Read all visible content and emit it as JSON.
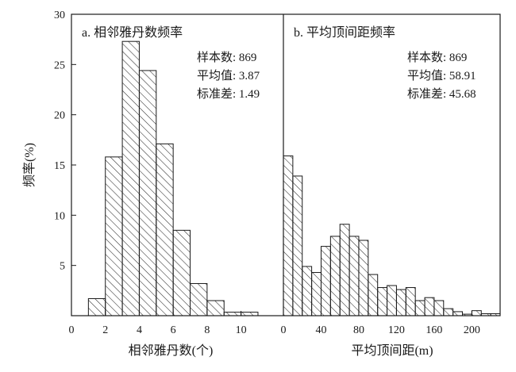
{
  "chart_data": [
    {
      "type": "bar",
      "title": "a. 相邻雅丹数频率",
      "xlabel": "相邻雅丹数(个)",
      "ylabel": "频率(%)",
      "xlim": [
        0,
        12.5
      ],
      "ylim": [
        0,
        30
      ],
      "x_ticks": [
        "0",
        "2",
        "4",
        "6",
        "8",
        "10"
      ],
      "y_ticks": [
        "5",
        "10",
        "15",
        "20",
        "25",
        "30"
      ],
      "bin_width": 1,
      "bins": [
        {
          "x": 1,
          "value": 1.7
        },
        {
          "x": 2,
          "value": 15.8
        },
        {
          "x": 3,
          "value": 27.3
        },
        {
          "x": 4,
          "value": 24.4
        },
        {
          "x": 5,
          "value": 17.1
        },
        {
          "x": 6,
          "value": 8.5
        },
        {
          "x": 7,
          "value": 3.2
        },
        {
          "x": 8,
          "value": 1.5
        },
        {
          "x": 9,
          "value": 0.35
        },
        {
          "x": 10,
          "value": 0.35
        }
      ],
      "stats": [
        {
          "label": "样本数",
          "value": "869"
        },
        {
          "label": "平均值",
          "value": "3.87"
        },
        {
          "label": "标准差",
          "value": "1.49"
        }
      ]
    },
    {
      "type": "bar",
      "title": "b. 平均顶间距频率",
      "xlabel": "平均顶间距(m)",
      "ylabel": "频率(%)",
      "xlim": [
        0,
        230
      ],
      "ylim": [
        0,
        30
      ],
      "x_ticks": [
        "0",
        "40",
        "80",
        "120",
        "160",
        "200"
      ],
      "y_ticks": [
        "5",
        "10",
        "15",
        "20",
        "25",
        "30"
      ],
      "bin_width": 10,
      "bins": [
        {
          "x": 0,
          "value": 15.9
        },
        {
          "x": 10,
          "value": 13.9
        },
        {
          "x": 20,
          "value": 4.9
        },
        {
          "x": 30,
          "value": 4.3
        },
        {
          "x": 40,
          "value": 6.9
        },
        {
          "x": 50,
          "value": 7.9
        },
        {
          "x": 60,
          "value": 9.1
        },
        {
          "x": 70,
          "value": 7.9
        },
        {
          "x": 80,
          "value": 7.5
        },
        {
          "x": 90,
          "value": 4.1
        },
        {
          "x": 100,
          "value": 2.8
        },
        {
          "x": 110,
          "value": 3.0
        },
        {
          "x": 120,
          "value": 2.6
        },
        {
          "x": 130,
          "value": 2.8
        },
        {
          "x": 140,
          "value": 1.5
        },
        {
          "x": 150,
          "value": 1.8
        },
        {
          "x": 160,
          "value": 1.5
        },
        {
          "x": 170,
          "value": 0.7
        },
        {
          "x": 180,
          "value": 0.4
        },
        {
          "x": 190,
          "value": 0.15
        },
        {
          "x": 200,
          "value": 0.5
        },
        {
          "x": 210,
          "value": 0.2
        },
        {
          "x": 220,
          "value": 0.2
        }
      ],
      "stats": [
        {
          "label": "样本数",
          "value": "869"
        },
        {
          "label": "平均值",
          "value": "58.91"
        },
        {
          "label": "标准差",
          "value": "45.68"
        }
      ]
    }
  ]
}
